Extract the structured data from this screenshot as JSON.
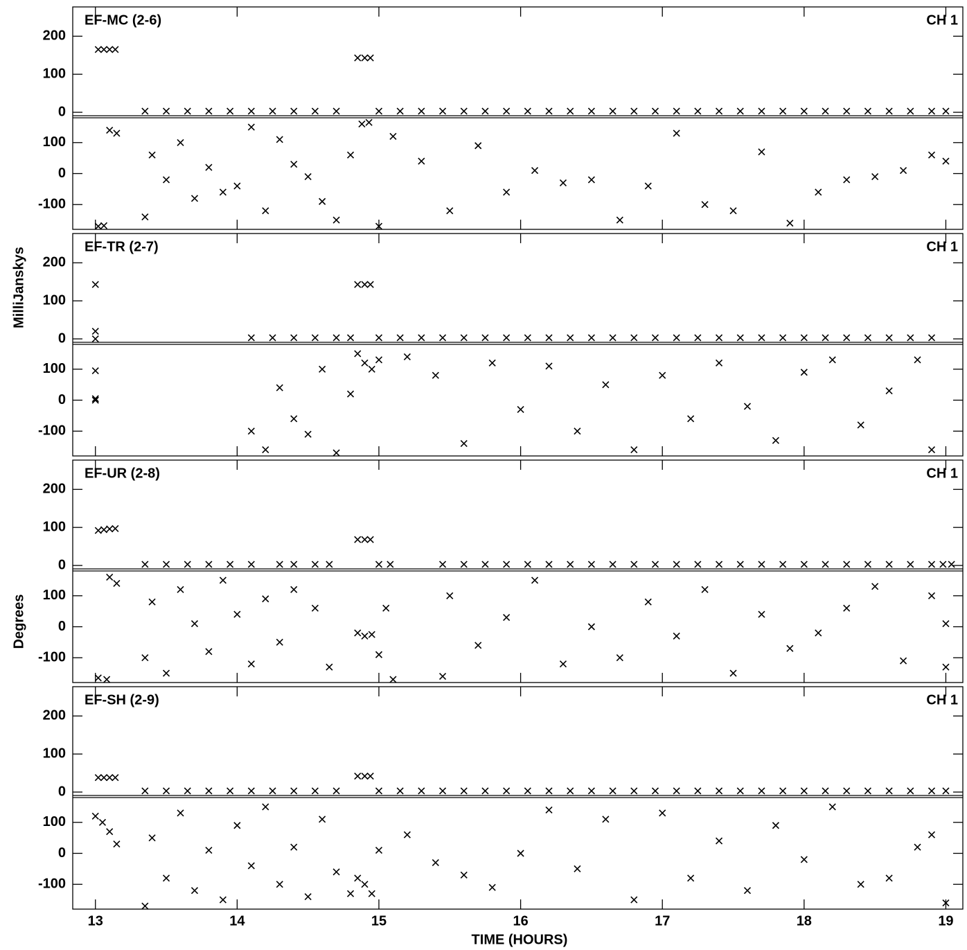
{
  "chart_data": {
    "type": "scatter",
    "xlabel": "TIME (HOURS)",
    "ylabel": "MilliJanskys",
    "y2label": "Degrees",
    "xlim": [
      12.84,
      19.12
    ],
    "xticks": [
      13,
      14,
      15,
      16,
      17,
      18,
      19
    ],
    "ylim": [
      -9,
      277
    ],
    "yticks": [
      0,
      100,
      200
    ],
    "y2lim": [
      -180,
      180
    ],
    "y2ticks": [
      -100,
      0,
      100
    ],
    "color": "#000000",
    "panels": [
      {
        "title": "EF-MC (2-6)",
        "channel": "CH 1",
        "amplitude": {
          "x": [
            13.02,
            13.06,
            13.1,
            13.14,
            13.35,
            13.5,
            13.65,
            13.8,
            13.95,
            14.1,
            14.25,
            14.4,
            14.55,
            14.7,
            14.85,
            14.9,
            14.94,
            15.0,
            15.15,
            15.3,
            15.45,
            15.6,
            15.75,
            15.9,
            16.05,
            16.2,
            16.35,
            16.5,
            16.65,
            16.8,
            16.95,
            17.1,
            17.25,
            17.4,
            17.55,
            17.7,
            17.85,
            18.0,
            18.15,
            18.3,
            18.45,
            18.6,
            18.75,
            18.9,
            19.0
          ],
          "values": [
            165,
            165,
            165,
            165,
            3,
            3,
            3,
            3,
            3,
            3,
            3,
            3,
            3,
            3,
            143,
            143,
            143,
            3,
            3,
            3,
            3,
            3,
            3,
            3,
            3,
            3,
            3,
            3,
            3,
            3,
            3,
            3,
            3,
            3,
            3,
            3,
            3,
            3,
            3,
            3,
            3,
            3,
            3,
            3,
            3
          ]
        },
        "phase": {
          "x": [
            13.02,
            13.06,
            13.1,
            13.15,
            13.35,
            13.4,
            13.5,
            13.6,
            13.7,
            13.8,
            13.9,
            14.0,
            14.1,
            14.2,
            14.3,
            14.4,
            14.5,
            14.6,
            14.7,
            14.8,
            14.88,
            14.93,
            15.0,
            15.1,
            15.3,
            15.5,
            15.7,
            15.9,
            16.1,
            16.3,
            16.5,
            16.7,
            16.9,
            17.1,
            17.3,
            17.5,
            17.7,
            17.9,
            18.1,
            18.3,
            18.5,
            18.7,
            18.9,
            19.0
          ],
          "values": [
            -170,
            -168,
            140,
            130,
            -140,
            60,
            -20,
            100,
            -80,
            20,
            -60,
            -40,
            150,
            -120,
            110,
            30,
            -10,
            -90,
            -150,
            60,
            160,
            165,
            -170,
            120,
            40,
            -120,
            90,
            -60,
            10,
            -30,
            -20,
            -150,
            -40,
            130,
            -100,
            -120,
            70,
            -160,
            -60,
            -20,
            -10,
            10,
            60,
            40
          ]
        }
      },
      {
        "title": "EF-TR (2-7)",
        "channel": "CH 1",
        "amplitude": {
          "x": [
            13.0,
            13.0,
            13.0,
            14.1,
            14.25,
            14.4,
            14.55,
            14.7,
            14.8,
            14.85,
            14.9,
            14.94,
            15.0,
            15.15,
            15.3,
            15.45,
            15.6,
            15.75,
            15.9,
            16.05,
            16.2,
            16.35,
            16.5,
            16.65,
            16.8,
            16.95,
            17.1,
            17.25,
            17.4,
            17.55,
            17.7,
            17.85,
            18.0,
            18.15,
            18.3,
            18.45,
            18.6,
            18.75,
            18.9
          ],
          "values": [
            143,
            20,
            0,
            3,
            3,
            3,
            3,
            3,
            3,
            143,
            143,
            143,
            3,
            3,
            3,
            3,
            3,
            3,
            3,
            3,
            3,
            3,
            3,
            3,
            3,
            3,
            3,
            3,
            3,
            3,
            3,
            3,
            3,
            3,
            3,
            3,
            3,
            3,
            3
          ]
        },
        "phase": {
          "x": [
            13.0,
            13.0,
            13.0,
            14.1,
            14.2,
            14.3,
            14.4,
            14.5,
            14.6,
            14.7,
            14.8,
            14.85,
            14.9,
            14.95,
            15.0,
            15.2,
            15.4,
            15.6,
            15.8,
            16.0,
            16.2,
            16.4,
            16.6,
            16.8,
            17.0,
            17.2,
            17.4,
            17.6,
            17.8,
            18.0,
            18.2,
            18.4,
            18.6,
            18.8,
            18.9
          ],
          "values": [
            95,
            5,
            0,
            -100,
            -160,
            40,
            -60,
            -110,
            100,
            -170,
            20,
            150,
            120,
            100,
            130,
            140,
            80,
            -140,
            120,
            -30,
            110,
            -100,
            50,
            -160,
            80,
            -60,
            120,
            -20,
            -130,
            90,
            130,
            -80,
            30,
            130,
            -160
          ]
        }
      },
      {
        "title": "EF-UR (2-8)",
        "channel": "CH 1",
        "amplitude": {
          "x": [
            13.02,
            13.06,
            13.1,
            13.14,
            13.35,
            13.5,
            13.65,
            13.8,
            13.95,
            14.1,
            14.3,
            14.4,
            14.55,
            14.65,
            14.85,
            14.9,
            14.94,
            15.0,
            15.08,
            15.45,
            15.6,
            15.75,
            15.9,
            16.05,
            16.2,
            16.35,
            16.5,
            16.65,
            16.8,
            16.95,
            17.1,
            17.25,
            17.4,
            17.55,
            17.7,
            17.85,
            18.0,
            18.15,
            18.3,
            18.45,
            18.6,
            18.75,
            18.9,
            18.98,
            19.04
          ],
          "values": [
            92,
            94,
            96,
            97,
            3,
            3,
            3,
            3,
            3,
            3,
            3,
            3,
            3,
            3,
            68,
            68,
            68,
            3,
            3,
            3,
            3,
            3,
            3,
            3,
            3,
            3,
            3,
            3,
            3,
            3,
            3,
            3,
            3,
            3,
            3,
            3,
            3,
            3,
            3,
            3,
            3,
            3,
            3,
            3,
            3
          ]
        },
        "phase": {
          "x": [
            13.02,
            13.08,
            13.1,
            13.15,
            13.35,
            13.4,
            13.5,
            13.6,
            13.7,
            13.8,
            13.9,
            14.0,
            14.1,
            14.2,
            14.3,
            14.4,
            14.55,
            14.65,
            14.85,
            14.9,
            14.95,
            15.0,
            15.05,
            15.1,
            15.45,
            15.5,
            15.7,
            15.9,
            16.1,
            16.3,
            16.5,
            16.7,
            16.9,
            17.1,
            17.3,
            17.5,
            17.7,
            17.9,
            18.1,
            18.3,
            18.5,
            18.7,
            18.9,
            19.0,
            19.0
          ],
          "values": [
            -165,
            -170,
            160,
            140,
            -100,
            80,
            -150,
            120,
            10,
            -80,
            150,
            40,
            -120,
            90,
            -50,
            120,
            60,
            -130,
            -20,
            -30,
            -25,
            -90,
            60,
            -170,
            -160,
            100,
            -60,
            30,
            150,
            -120,
            0,
            -100,
            80,
            -30,
            120,
            -150,
            40,
            -70,
            -20,
            60,
            130,
            -110,
            100,
            -130,
            10
          ]
        }
      },
      {
        "title": "EF-SH (2-9)",
        "channel": "CH 1",
        "amplitude": {
          "x": [
            13.02,
            13.06,
            13.1,
            13.14,
            13.35,
            13.5,
            13.65,
            13.8,
            13.95,
            14.1,
            14.25,
            14.4,
            14.55,
            14.7,
            14.85,
            14.9,
            14.94,
            15.0,
            15.15,
            15.3,
            15.45,
            15.6,
            15.75,
            15.9,
            16.05,
            16.2,
            16.35,
            16.5,
            16.65,
            16.8,
            16.95,
            17.1,
            17.25,
            17.4,
            17.55,
            17.7,
            17.85,
            18.0,
            18.15,
            18.3,
            18.45,
            18.6,
            18.75,
            18.9,
            19.0
          ],
          "values": [
            38,
            38,
            38,
            38,
            3,
            3,
            3,
            3,
            3,
            3,
            3,
            3,
            3,
            3,
            42,
            42,
            42,
            3,
            3,
            3,
            3,
            3,
            3,
            3,
            3,
            3,
            3,
            3,
            3,
            3,
            3,
            3,
            3,
            3,
            3,
            3,
            3,
            3,
            3,
            3,
            3,
            3,
            3,
            3,
            3
          ]
        },
        "phase": {
          "x": [
            13.0,
            13.05,
            13.1,
            13.15,
            13.35,
            13.4,
            13.5,
            13.6,
            13.7,
            13.8,
            13.9,
            14.0,
            14.1,
            14.2,
            14.3,
            14.4,
            14.5,
            14.6,
            14.7,
            14.8,
            14.85,
            14.9,
            14.95,
            15.0,
            15.2,
            15.4,
            15.6,
            15.8,
            16.0,
            16.2,
            16.4,
            16.6,
            16.8,
            17.0,
            17.2,
            17.4,
            17.6,
            17.8,
            18.0,
            18.2,
            18.4,
            18.6,
            18.8,
            18.9,
            19.0
          ],
          "values": [
            120,
            100,
            70,
            30,
            -170,
            50,
            -80,
            130,
            -120,
            10,
            -150,
            90,
            -40,
            150,
            -100,
            20,
            -140,
            110,
            -60,
            -130,
            -80,
            -100,
            -130,
            10,
            60,
            -30,
            -70,
            -110,
            0,
            140,
            -50,
            110,
            -150,
            130,
            -80,
            40,
            -120,
            90,
            -20,
            150,
            -100,
            -80,
            20,
            60,
            -160
          ]
        }
      }
    ]
  }
}
